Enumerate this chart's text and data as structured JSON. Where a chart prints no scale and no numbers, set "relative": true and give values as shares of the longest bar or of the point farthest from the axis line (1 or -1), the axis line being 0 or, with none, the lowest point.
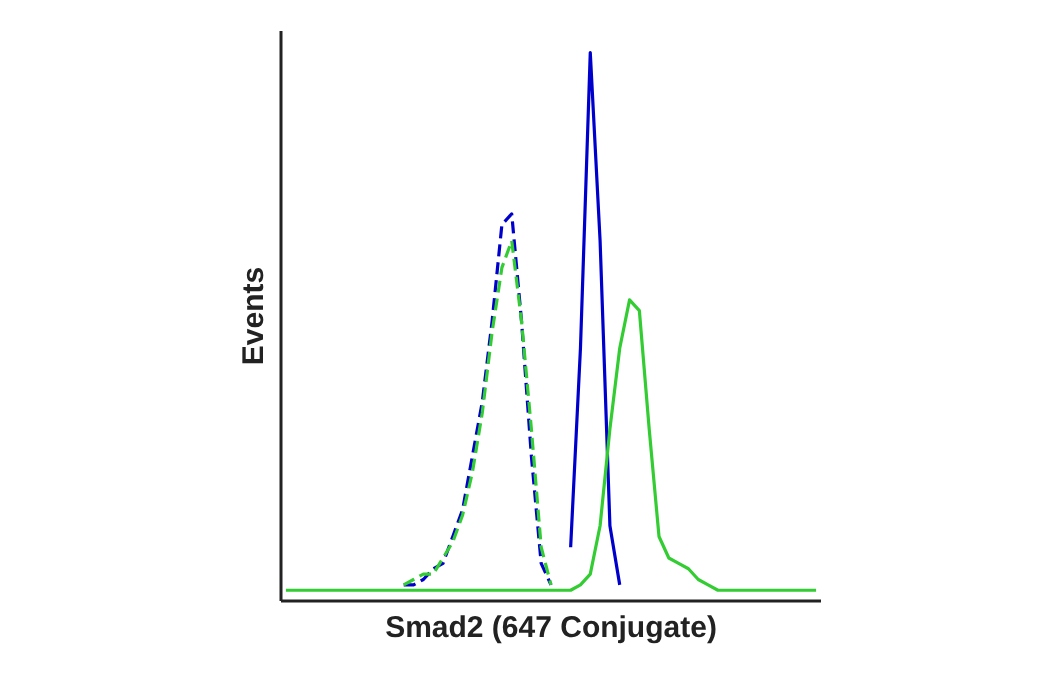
{
  "chart_data": {
    "type": "line",
    "relative": true,
    "xlabel": "Smad2 (647 Conjugate)",
    "ylabel": "Events",
    "categories": [
      null,
      null,
      null,
      null,
      null,
      null,
      null,
      null,
      null,
      null,
      null,
      null,
      null,
      null,
      null,
      null,
      null,
      null,
      null,
      null,
      null,
      null,
      null,
      null,
      null,
      null,
      null,
      null,
      null,
      null,
      null,
      null,
      null,
      null,
      null,
      null,
      null,
      null,
      null,
      null,
      null,
      null,
      null,
      null,
      null,
      null,
      null,
      null,
      null,
      null,
      null,
      null,
      null,
      null,
      null
    ],
    "series": [
      {
        "color": "#0000cc",
        "line_style": "dashed",
        "values": [
          null,
          null,
          null,
          null,
          null,
          null,
          null,
          null,
          null,
          null,
          null,
          null,
          0.01,
          0.01,
          0.02,
          0.04,
          0.05,
          0.1,
          0.15,
          0.25,
          0.35,
          0.5,
          0.68,
          0.7,
          0.5,
          0.25,
          0.05,
          0.01,
          null,
          null,
          null,
          null,
          null,
          null,
          null,
          null,
          null,
          null,
          null,
          null,
          null,
          null,
          null,
          null,
          null,
          null,
          null,
          null,
          null,
          null,
          null,
          null,
          null,
          null,
          null
        ]
      },
      {
        "color": "#33cc33",
        "line_style": "dashed",
        "values": [
          null,
          null,
          null,
          null,
          null,
          null,
          null,
          null,
          null,
          null,
          null,
          null,
          0.01,
          0.02,
          0.03,
          0.03,
          0.06,
          0.09,
          0.14,
          0.22,
          0.33,
          0.48,
          0.6,
          0.65,
          0.5,
          0.3,
          0.08,
          0.01,
          null,
          null,
          null,
          null,
          null,
          null,
          null,
          null,
          null,
          null,
          null,
          null,
          null,
          null,
          null,
          null,
          null,
          null,
          null,
          null,
          null,
          null,
          null,
          null,
          null,
          null,
          null
        ]
      },
      {
        "color": "#0000cc",
        "line_style": "solid",
        "values": [
          null,
          null,
          null,
          null,
          null,
          null,
          null,
          null,
          null,
          null,
          null,
          null,
          null,
          null,
          null,
          null,
          null,
          null,
          null,
          null,
          null,
          null,
          null,
          null,
          null,
          null,
          null,
          null,
          null,
          0.08,
          0.45,
          1,
          0.65,
          0.12,
          0.01,
          null,
          null,
          null,
          null,
          null,
          null,
          null,
          null,
          null,
          null,
          null,
          null,
          null,
          null,
          null,
          null,
          null,
          null,
          null,
          null
        ]
      },
      {
        "color": "#33cc33",
        "line_style": "solid",
        "values": [
          0,
          0,
          0,
          0,
          0,
          0,
          0,
          0,
          0,
          0,
          0,
          0,
          0,
          0,
          0,
          0,
          0,
          0,
          0,
          0,
          0,
          0,
          0,
          0,
          0,
          0,
          0,
          0,
          0,
          0,
          0.01,
          0.03,
          0.12,
          0.3,
          0.45,
          0.54,
          0.52,
          0.3,
          0.1,
          0.06,
          0.05,
          0.04,
          0.02,
          0.01,
          0,
          0,
          0,
          0,
          0,
          0,
          0,
          0,
          0,
          0,
          0
        ]
      }
    ]
  }
}
